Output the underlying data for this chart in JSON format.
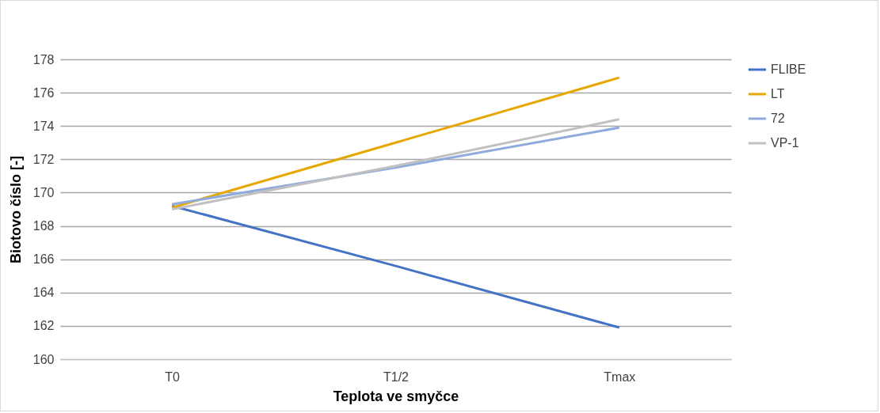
{
  "chart_data": {
    "type": "line",
    "xlabel": "Teplota ve smyčce",
    "ylabel": "Biotovo číslo [-]",
    "categories": [
      "T0",
      "T1/2",
      "Tmax"
    ],
    "series": [
      {
        "name": "FLIBE",
        "color": "#4472c4",
        "values": [
          169.2,
          165.6,
          161.9
        ]
      },
      {
        "name": "LT",
        "color": "#e6a800",
        "values": [
          169.1,
          173.0,
          176.9
        ]
      },
      {
        "name": "72",
        "color": "#8faadc",
        "values": [
          169.3,
          171.5,
          173.9
        ]
      },
      {
        "name": "VP-1",
        "color": "#c0c0c0",
        "values": [
          169.0,
          171.6,
          174.4
        ]
      }
    ],
    "ylim": [
      160,
      178
    ],
    "yticks": [
      160,
      162,
      164,
      166,
      168,
      170,
      172,
      174,
      176,
      178
    ],
    "grid": "y",
    "legend": "right",
    "marker": "none",
    "line_style": "solid"
  }
}
